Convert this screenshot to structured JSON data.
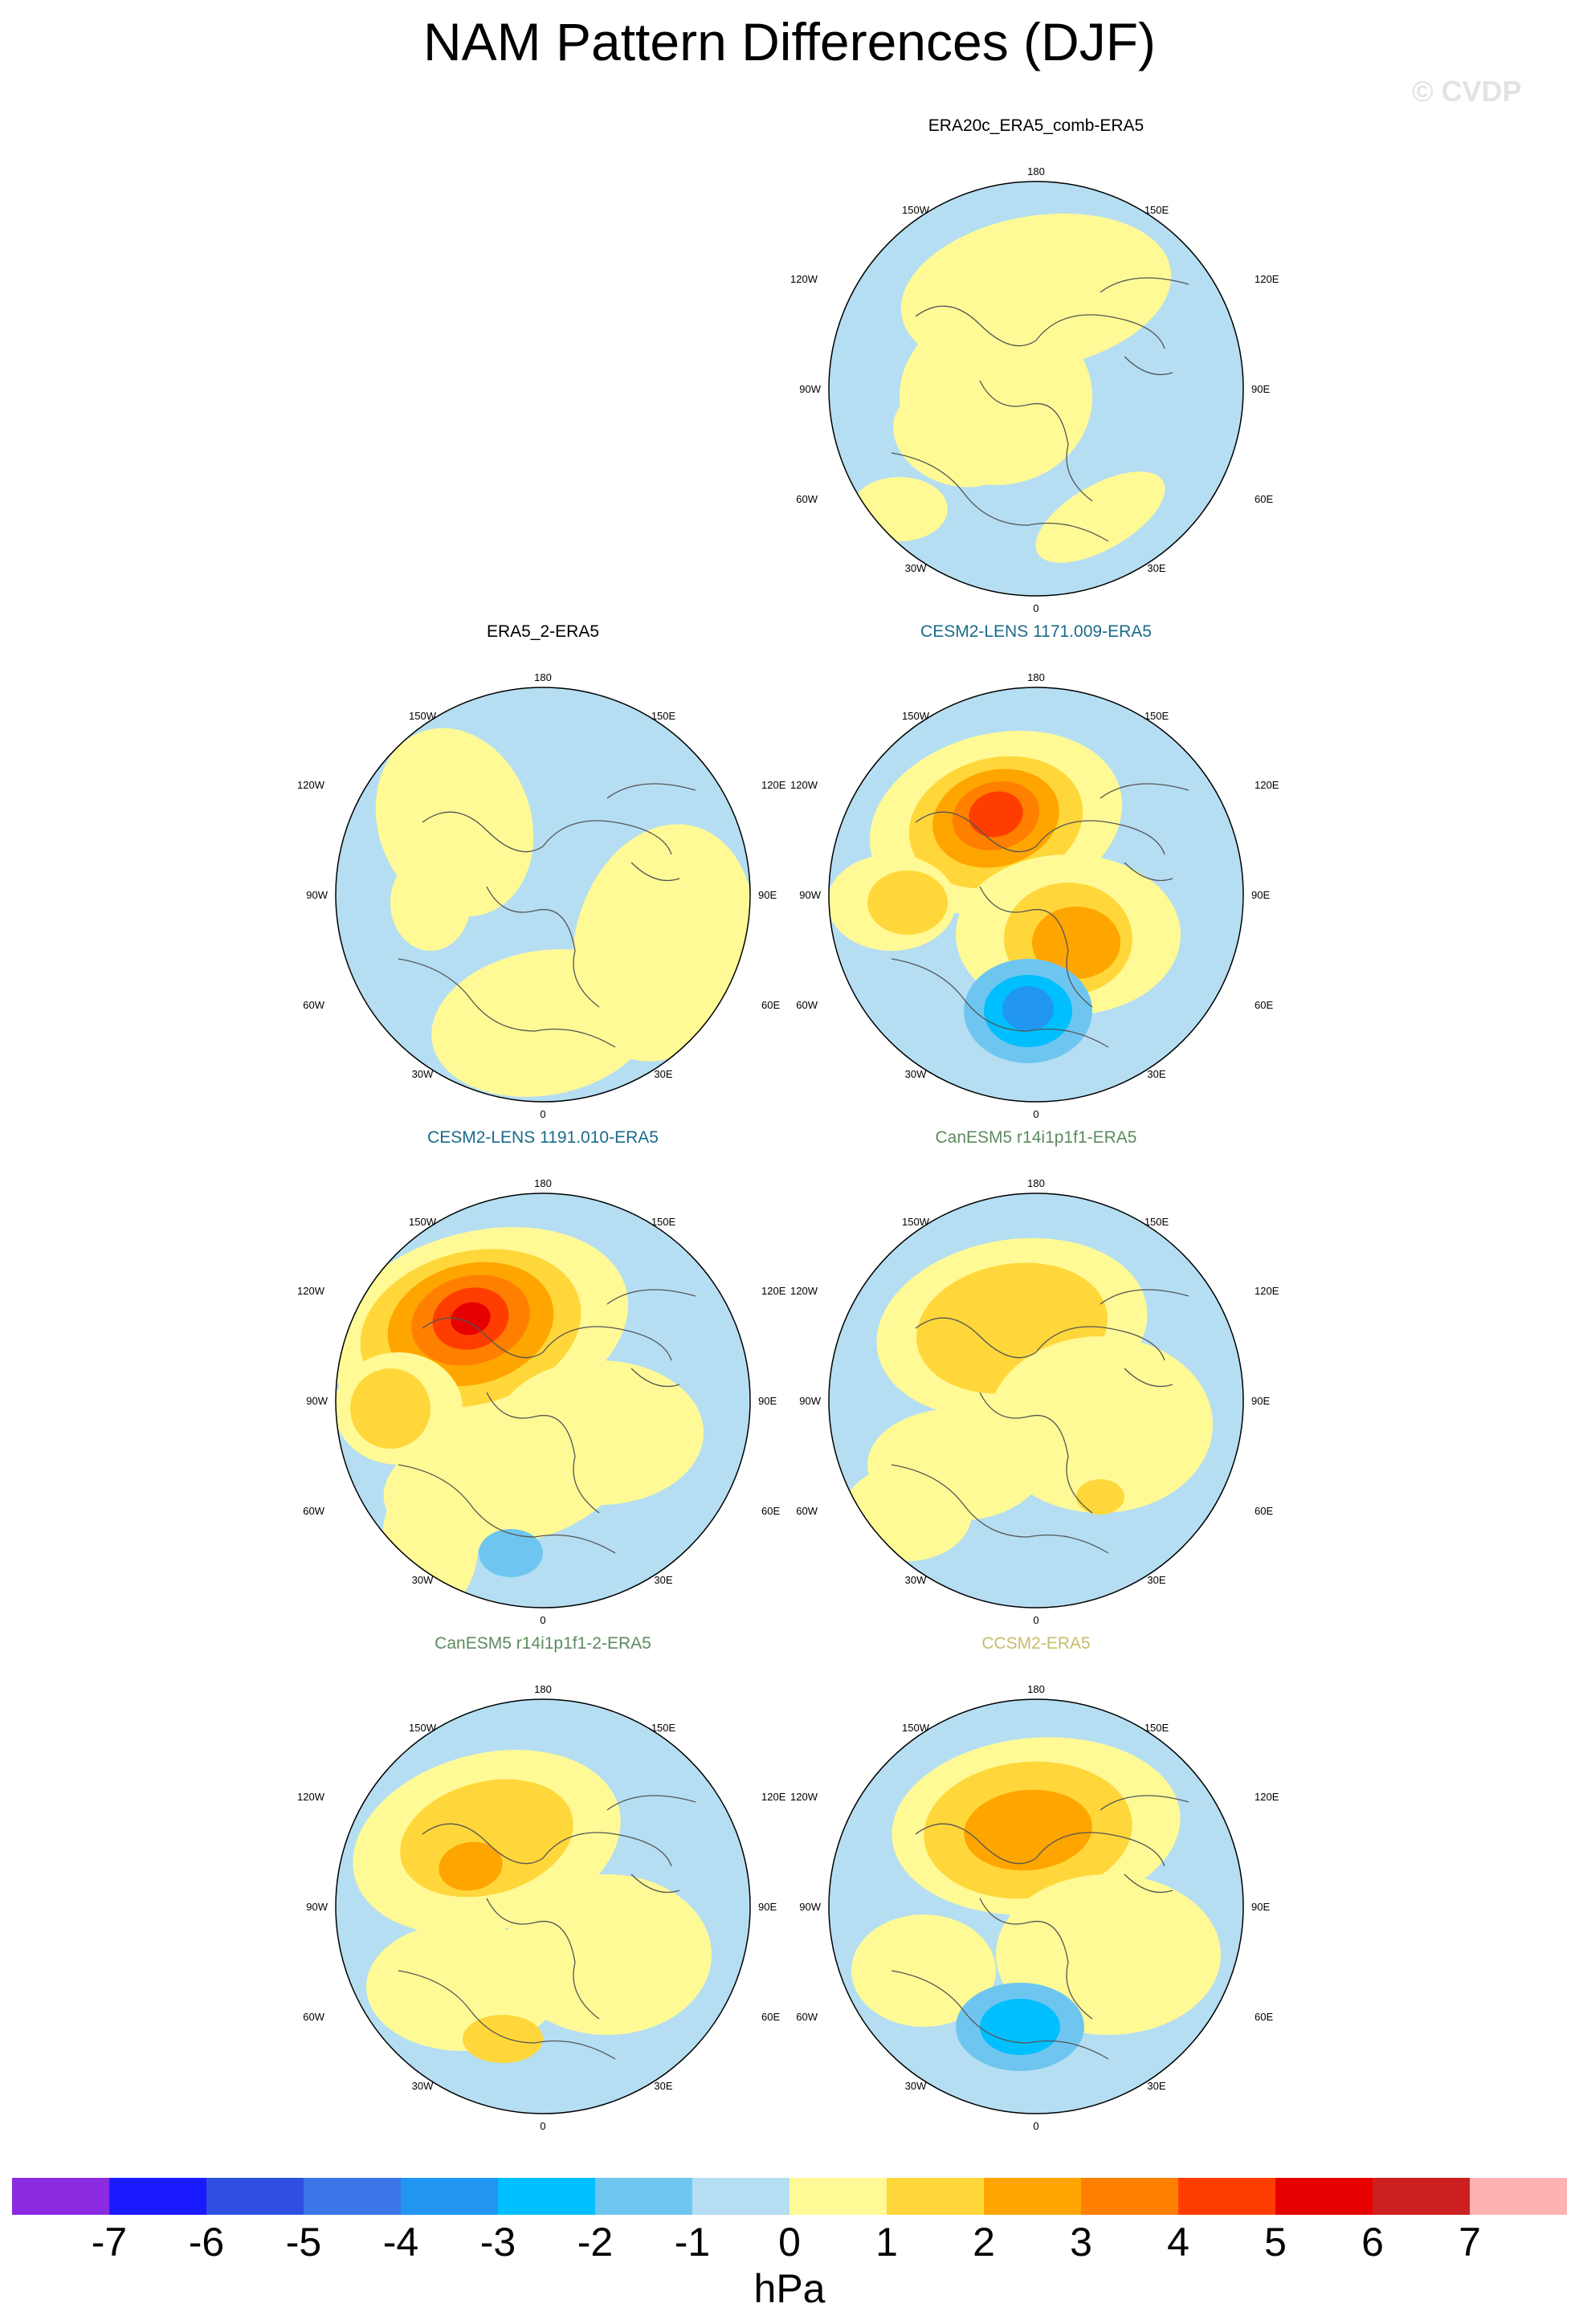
{
  "title": "NAM Pattern Differences (DJF)",
  "watermark": "© CVDP",
  "units": "hPa",
  "colorbar": {
    "labels": [
      "-7",
      "-6",
      "-5",
      "-4",
      "-3",
      "-2",
      "-1",
      "0",
      "1",
      "2",
      "3",
      "4",
      "5",
      "6",
      "7"
    ],
    "colors": [
      "#8a2be2",
      "#1a1aff",
      "#2f4fe0",
      "#3a76e8",
      "#2196f3",
      "#00bfff",
      "#6ec6f0",
      "#b5def2",
      "#fffa96",
      "#ffd73a",
      "#ffa500",
      "#ff7f00",
      "#ff3d00",
      "#e60000",
      "#cc1f1f",
      "#ffb2b2"
    ]
  },
  "grid_labels": {
    "top": "180",
    "bottom": "0",
    "ul1": "150W",
    "ur1": "150E",
    "ul2": "120W",
    "ur2": "120E",
    "l": "90W",
    "r": "90E",
    "ll2": "60W",
    "lr2": "60E",
    "ll1": "30W",
    "lr1": "30E"
  },
  "panels": [
    {
      "name": "ERA20c_ERA5_comb-ERA5",
      "title_color": "#000000"
    },
    {
      "name": "ERA5_2-ERA5",
      "title_color": "#000000"
    },
    {
      "name": "CESM2-LENS 1171.009-ERA5",
      "title_color": "#1a6b8a"
    },
    {
      "name": "CESM2-LENS 1191.010-ERA5",
      "title_color": "#1a6b8a"
    },
    {
      "name": "CanESM5 r14i1p1f1-ERA5",
      "title_color": "#5d8a5d"
    },
    {
      "name": "CanESM5 r14i1p1f1-2-ERA5",
      "title_color": "#5d8a5d"
    },
    {
      "name": "CCSM2-ERA5",
      "title_color": "#c7bd6b"
    }
  ]
}
